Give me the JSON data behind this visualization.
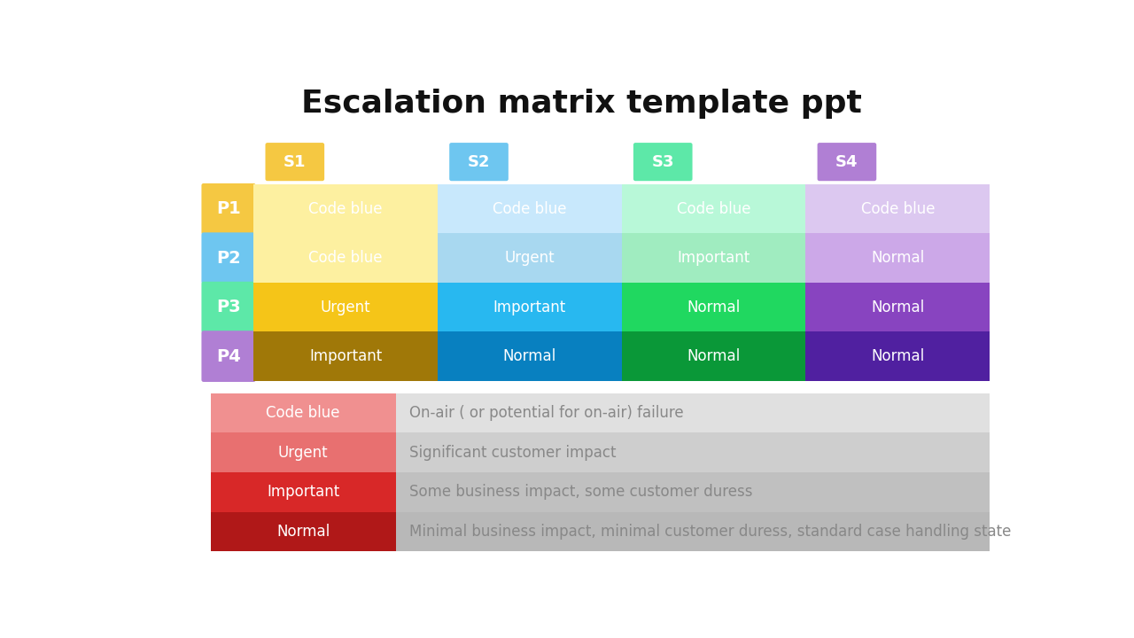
{
  "title": "Escalation matrix template ppt",
  "title_fontsize": 26,
  "title_fontweight": "bold",
  "background_color": "#ffffff",
  "scenarios": [
    "S1",
    "S2",
    "S3",
    "S4"
  ],
  "priorities": [
    "P1",
    "P2",
    "P3",
    "P4"
  ],
  "scenario_colors": [
    "#f5c842",
    "#6ec6f0",
    "#5de8a8",
    "#b07fd4"
  ],
  "priority_colors": [
    "#f5c842",
    "#6ec6f0",
    "#5de8a8",
    "#b07fd4"
  ],
  "matrix": [
    [
      "Code blue",
      "Code blue",
      "Code blue",
      "Code blue"
    ],
    [
      "Code blue",
      "Urgent",
      "Important",
      "Normal"
    ],
    [
      "Urgent",
      "Important",
      "Normal",
      "Normal"
    ],
    [
      "Important",
      "Normal",
      "Normal",
      "Normal"
    ]
  ],
  "cell_colors": [
    [
      "#fdf0a0",
      "#c8e8fc",
      "#b8f8d8",
      "#dcc8f0"
    ],
    [
      "#fdf0a0",
      "#a8d8f0",
      "#a0ecc0",
      "#cca8e8"
    ],
    [
      "#f5c518",
      "#28b8f0",
      "#20d860",
      "#8844c0"
    ],
    [
      "#a07808",
      "#0880c0",
      "#0a9838",
      "#5020a0"
    ]
  ],
  "legend_items": [
    {
      "label": "Code blue",
      "color": "#f09090",
      "description": "On-air ( or potential for on-air) failure"
    },
    {
      "label": "Urgent",
      "color": "#e87070",
      "description": "Significant customer impact"
    },
    {
      "label": "Important",
      "color": "#d82828",
      "description": "Some business impact, some customer duress"
    },
    {
      "label": "Normal",
      "color": "#b01818",
      "description": "Minimal business impact, minimal customer duress, standard case handling state"
    }
  ],
  "legend_row_bgs": [
    "#e0e0e0",
    "#cecece",
    "#c0c0c0",
    "#b8b8b8"
  ]
}
